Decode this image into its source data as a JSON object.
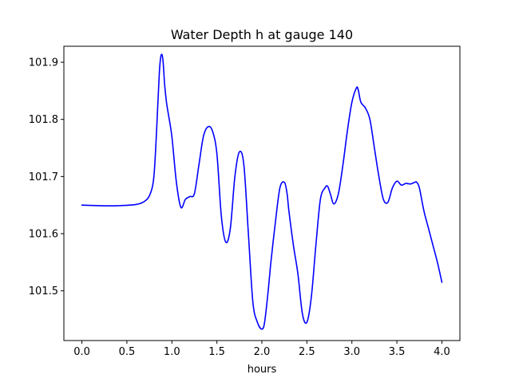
{
  "chart_data": {
    "type": "line",
    "title": "Water Depth h at gauge 140",
    "xlabel": "hours",
    "ylabel": "",
    "xlim": [
      -0.2,
      4.2
    ],
    "ylim": [
      101.413,
      101.928
    ],
    "xticks": [
      0.0,
      0.5,
      1.0,
      1.5,
      2.0,
      2.5,
      3.0,
      3.5,
      4.0
    ],
    "xtick_labels": [
      "0.0",
      "0.5",
      "1.0",
      "1.5",
      "2.0",
      "2.5",
      "3.0",
      "3.5",
      "4.0"
    ],
    "yticks": [
      101.5,
      101.6,
      101.7,
      101.8,
      101.9
    ],
    "ytick_labels": [
      "101.5",
      "101.6",
      "101.7",
      "101.8",
      "101.9"
    ],
    "grid": false,
    "legend": "none",
    "series": [
      {
        "color": "#0000ff",
        "x": [
          0.0,
          0.2,
          0.4,
          0.6,
          0.7,
          0.76,
          0.8,
          0.83,
          0.86,
          0.88,
          0.9,
          0.92,
          0.94,
          0.96,
          1.0,
          1.05,
          1.1,
          1.15,
          1.2,
          1.25,
          1.3,
          1.35,
          1.4,
          1.45,
          1.5,
          1.55,
          1.6,
          1.65,
          1.7,
          1.75,
          1.8,
          1.85,
          1.9,
          1.95,
          2.0,
          2.03,
          2.07,
          2.1,
          2.15,
          2.2,
          2.25,
          2.28,
          2.3,
          2.35,
          2.4,
          2.45,
          2.5,
          2.55,
          2.6,
          2.65,
          2.7,
          2.73,
          2.76,
          2.8,
          2.85,
          2.9,
          2.95,
          3.0,
          3.05,
          3.07,
          3.1,
          3.15,
          3.2,
          3.25,
          3.3,
          3.35,
          3.4,
          3.45,
          3.5,
          3.55,
          3.6,
          3.65,
          3.7,
          3.72,
          3.75,
          3.8,
          3.85,
          3.9,
          3.95,
          4.0
        ],
        "y": [
          101.65,
          101.649,
          101.649,
          101.651,
          101.657,
          101.67,
          101.7,
          101.78,
          101.88,
          101.912,
          101.905,
          101.86,
          101.83,
          101.81,
          101.77,
          101.69,
          101.646,
          101.66,
          101.665,
          101.67,
          101.72,
          101.77,
          101.787,
          101.78,
          101.74,
          101.63,
          101.585,
          101.61,
          101.7,
          101.743,
          101.72,
          101.6,
          101.48,
          101.445,
          101.433,
          101.445,
          101.5,
          101.55,
          101.62,
          101.68,
          101.69,
          101.67,
          101.64,
          101.58,
          101.53,
          101.46,
          101.445,
          101.49,
          101.58,
          101.66,
          101.68,
          101.683,
          101.67,
          101.652,
          101.67,
          101.72,
          101.78,
          101.83,
          101.855,
          101.852,
          101.83,
          101.82,
          101.8,
          101.75,
          101.7,
          101.66,
          101.655,
          101.68,
          101.692,
          101.685,
          101.688,
          101.687,
          101.69,
          101.69,
          101.68,
          101.64,
          101.61,
          101.58,
          101.55,
          101.515
        ]
      }
    ]
  }
}
